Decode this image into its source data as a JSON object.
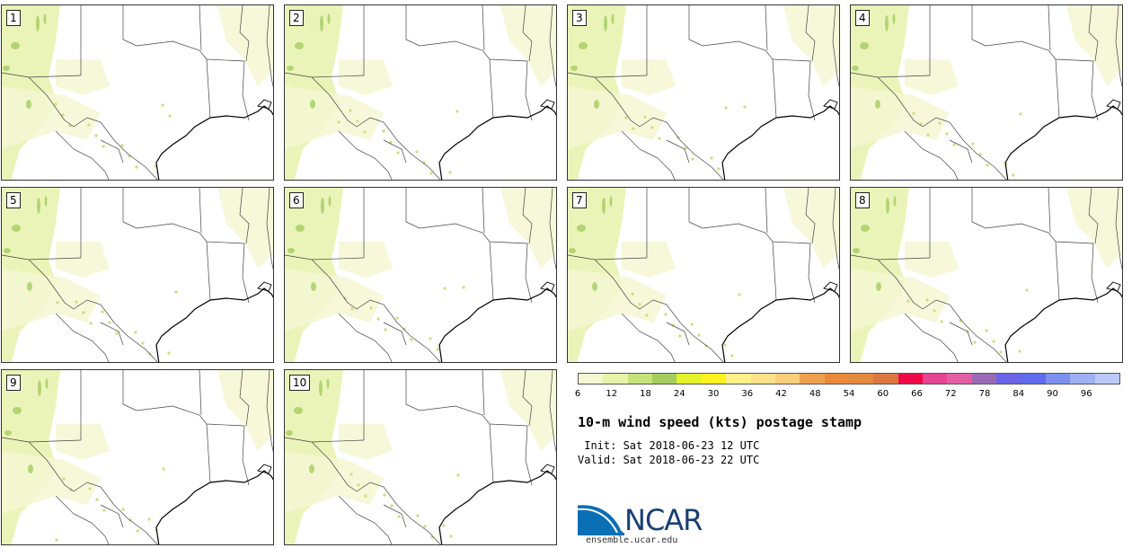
{
  "panels": [
    {
      "label": "1"
    },
    {
      "label": "2"
    },
    {
      "label": "3"
    },
    {
      "label": "4"
    },
    {
      "label": "5"
    },
    {
      "label": "6"
    },
    {
      "label": "7"
    },
    {
      "label": "8"
    },
    {
      "label": "9"
    },
    {
      "label": "10"
    }
  ],
  "colorbar": {
    "colors": [
      "#f4f7d2",
      "#e7f2ab",
      "#c6e27a",
      "#a5cc61",
      "#e3f22a",
      "#fff21e",
      "#fff08a",
      "#fde08a",
      "#f8cf7a",
      "#efa04f",
      "#e98b3a",
      "#e38a3e",
      "#db7741",
      "#ee0a47",
      "#e64593",
      "#e25fa4",
      "#9a6ab5",
      "#6b65ea",
      "#5e6cf0",
      "#7b90ee",
      "#9fb0f3",
      "#bcc9f7"
    ],
    "ticks": [
      "6",
      "12",
      "18",
      "24",
      "30",
      "36",
      "42",
      "48",
      "54",
      "60",
      "66",
      "72",
      "78",
      "84",
      "90",
      "96"
    ]
  },
  "title": "10-m wind speed (kts) postage stamp",
  "init_line": " Init: Sat 2018-06-23 12 UTC",
  "valid_line": "Valid: Sat 2018-06-23 22 UTC",
  "logo": {
    "text": "NCAR",
    "url": "ensemble.ucar.edu",
    "color": "#1a3f73",
    "swoosh_color": "#0a6fb5"
  }
}
